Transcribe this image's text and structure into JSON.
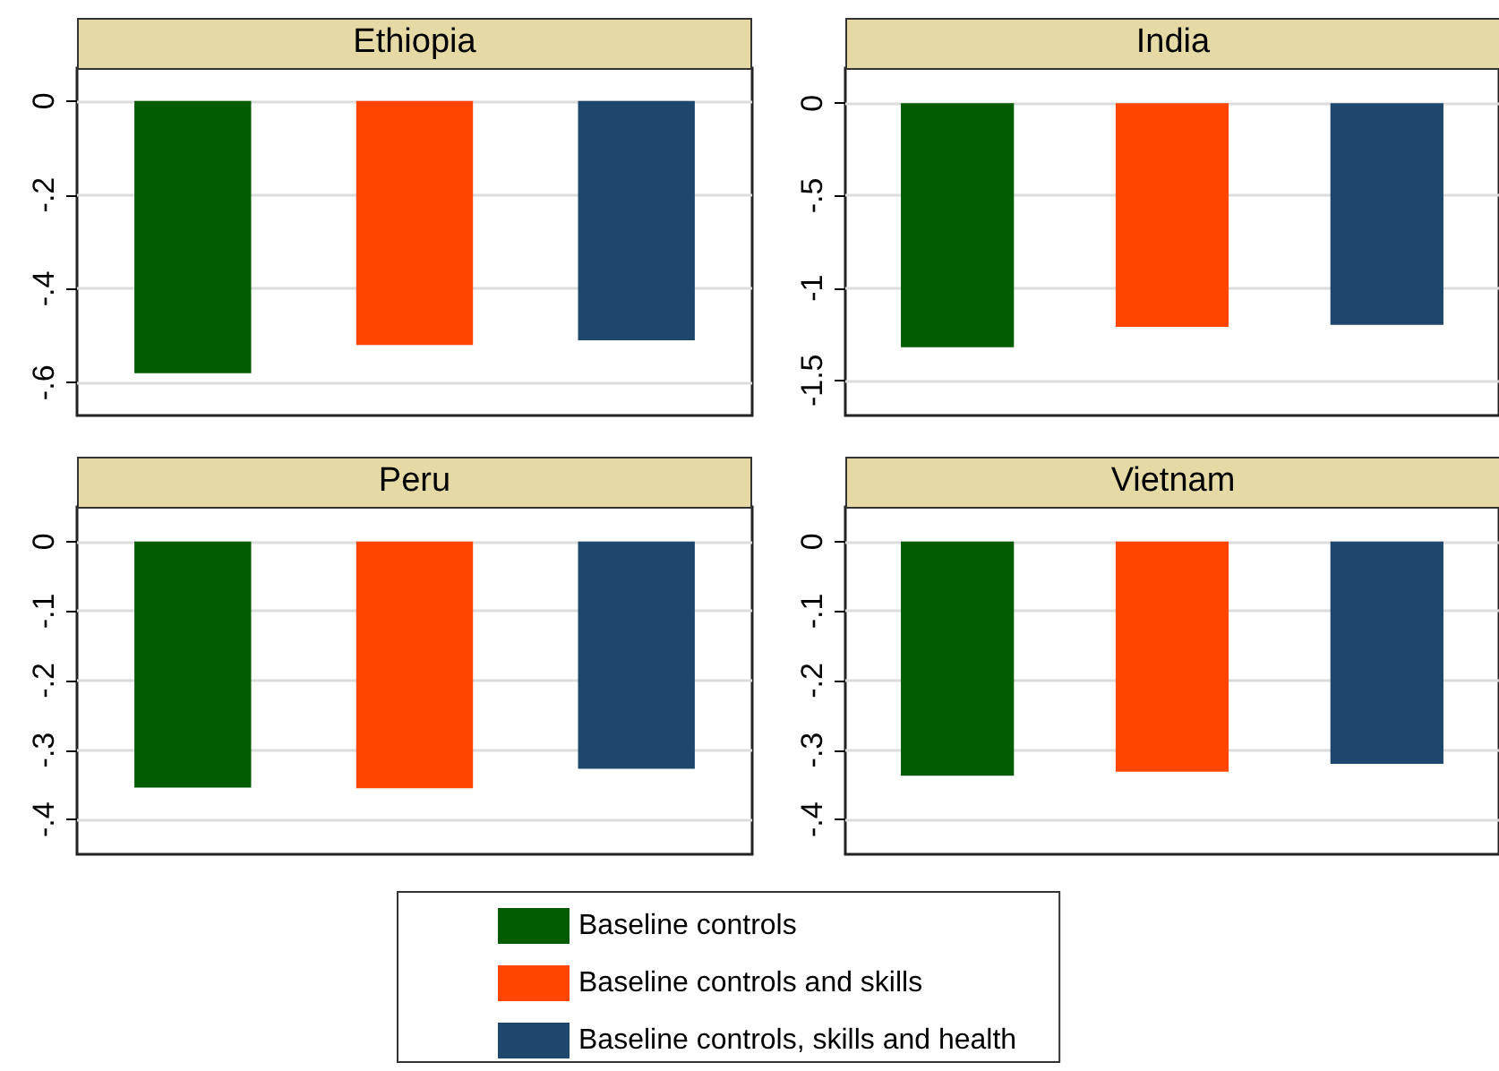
{
  "chart_data": [
    {
      "type": "bar",
      "title": "Ethiopia",
      "categories": [
        null
      ],
      "series": [
        {
          "color": "#025c02",
          "values": [
            -0.58
          ]
        },
        {
          "color": "#ff4500",
          "values": [
            -0.52
          ]
        },
        {
          "color": "#1d476d",
          "values": [
            -0.51
          ]
        }
      ],
      "ylim": [
        -0.67,
        0.07
      ],
      "yticks": [
        0,
        {
          "value": -0.2,
          "label": "-.2"
        },
        {
          "value": -0.4,
          "label": "-.4"
        },
        {
          "value": -0.6,
          "label": "-.6"
        }
      ],
      "grid": "y",
      "tick_labels": "y"
    },
    {
      "type": "bar",
      "title": "India",
      "categories": [
        null
      ],
      "series": [
        {
          "color": "#025c02",
          "values": [
            -1.32
          ]
        },
        {
          "color": "#ff4500",
          "values": [
            -1.21
          ]
        },
        {
          "color": "#1d476d",
          "values": [
            -1.2
          ]
        }
      ],
      "ylim": [
        -1.69,
        0.19
      ],
      "yticks": [
        0,
        {
          "value": -0.5,
          "label": "-.5"
        },
        -1,
        -1.5
      ],
      "grid": "y",
      "tick_labels": "y"
    },
    {
      "type": "bar",
      "title": "Peru",
      "categories": [
        null
      ],
      "series": [
        {
          "color": "#025c02",
          "values": [
            -0.354
          ]
        },
        {
          "color": "#ff4500",
          "values": [
            -0.355
          ]
        },
        {
          "color": "#1d476d",
          "values": [
            -0.327
          ]
        }
      ],
      "ylim": [
        -0.45,
        0.05
      ],
      "yticks": [
        0,
        {
          "value": -0.1,
          "label": "-.1"
        },
        {
          "value": -0.2,
          "label": "-.2"
        },
        {
          "value": -0.3,
          "label": "-.3"
        },
        {
          "value": -0.4,
          "label": "-.4"
        }
      ],
      "grid": "y",
      "tick_labels": "y"
    },
    {
      "type": "bar",
      "title": "Vietnam",
      "categories": [
        null
      ],
      "series": [
        {
          "name": "Baseline controls",
          "color": "#025c02",
          "values": [
            -0.337
          ]
        },
        {
          "name": "Baseline controls and skills",
          "color": "#ff4500",
          "values": [
            -0.331
          ]
        },
        {
          "name": "Baseline controls, skills and health",
          "color": "#1d476d",
          "values": [
            -0.32
          ]
        }
      ],
      "ylim": [
        -0.45,
        0.05
      ],
      "yticks": [
        0,
        {
          "value": -0.1,
          "label": "-.1"
        },
        {
          "value": -0.2,
          "label": "-.2"
        },
        {
          "value": -0.3,
          "label": "-.3"
        },
        {
          "value": -0.4,
          "label": "-.4"
        }
      ],
      "grid": "y",
      "tick_labels": "y",
      "legend": "bottom"
    }
  ]
}
